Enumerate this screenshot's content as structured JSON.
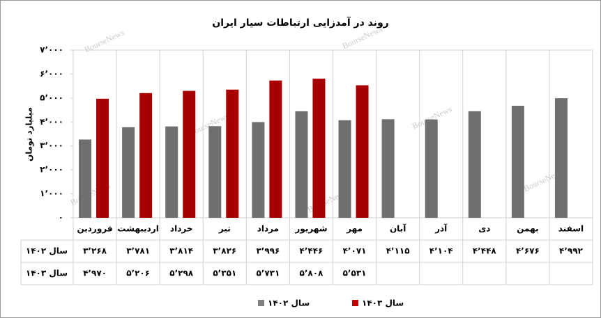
{
  "chart_data": {
    "type": "bar",
    "title": "روند در آمدزایی ارتباطات سیار ایران",
    "y_label": "میلیارد تومان",
    "watermark": "BourseNews",
    "categories": [
      "فروردین",
      "اردیبهشت",
      "خرداد",
      "تیر",
      "مرداد",
      "شهریور",
      "مهر",
      "آبان",
      "آذر",
      "دی",
      "بهمن",
      "اسفند"
    ],
    "series": [
      {
        "name": "سال ۱۴۰۲",
        "color": "#7f7f7f",
        "values": [
          3268,
          3781,
          3814,
          3826,
          3996,
          4446,
          4071,
          4115,
          4104,
          4448,
          4676,
          4992
        ],
        "value_labels": [
          "۳٬۲۶۸",
          "۳٬۷۸۱",
          "۳٬۸۱۴",
          "۳٬۸۲۶",
          "۳٬۹۹۶",
          "۴٬۴۴۶",
          "۴٬۰۷۱",
          "۴٬۱۱۵",
          "۴٬۱۰۴",
          "۴٬۴۴۸",
          "۴٬۶۷۶",
          "۴٬۹۹۲"
        ]
      },
      {
        "name": "سال ۱۴۰۳",
        "color": "#c00000",
        "values": [
          4970,
          5206,
          5298,
          5351,
          5731,
          5808,
          5531,
          null,
          null,
          null,
          null,
          null
        ],
        "value_labels": [
          "۴٬۹۷۰",
          "۵٬۲۰۶",
          "۵٬۲۹۸",
          "۵٬۳۵۱",
          "۵٬۷۳۱",
          "۵٬۸۰۸",
          "۵٬۵۳۱",
          null,
          null,
          null,
          null,
          null
        ]
      }
    ],
    "ylim": [
      0,
      7000
    ],
    "yticks": [
      {
        "value": 0,
        "label": "۰"
      },
      {
        "value": 1000,
        "label": "۱٬۰۰۰"
      },
      {
        "value": 2000,
        "label": "۲٬۰۰۰"
      },
      {
        "value": 3000,
        "label": "۳٬۰۰۰"
      },
      {
        "value": 4000,
        "label": "۴٬۰۰۰"
      },
      {
        "value": 5000,
        "label": "۵٬۰۰۰"
      },
      {
        "value": 6000,
        "label": "۶٬۰۰۰"
      },
      {
        "value": 7000,
        "label": "۷٬۰۰۰"
      }
    ],
    "grid": false
  }
}
